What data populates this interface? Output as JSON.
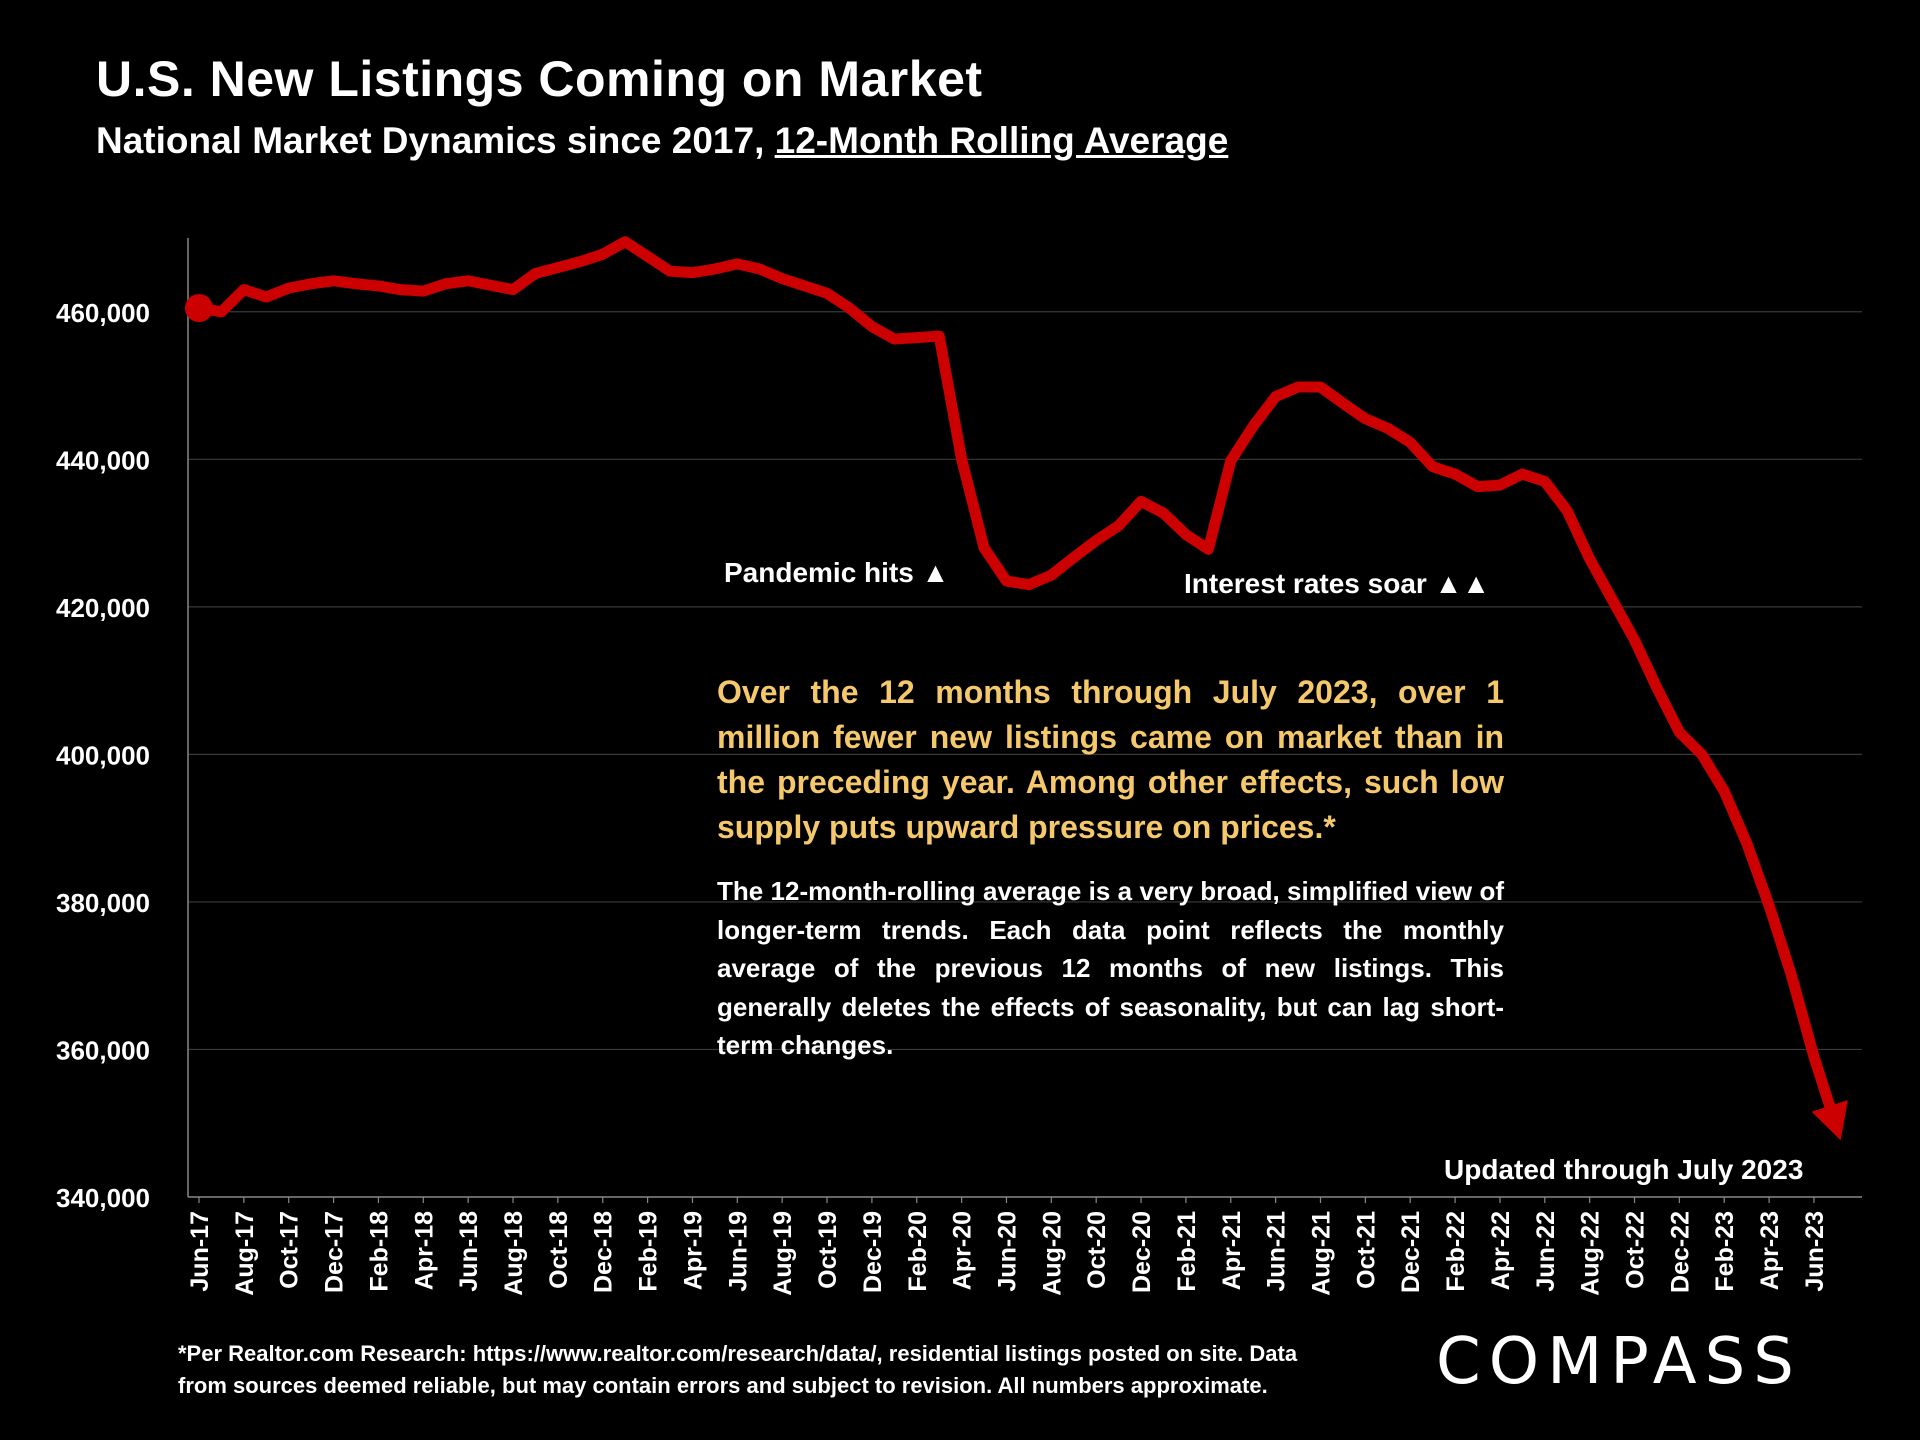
{
  "header": {
    "title": "U.S. New Listings Coming on Market",
    "subtitle_prefix": "National Market Dynamics since 2017, ",
    "subtitle_underlined": "12-Month Rolling Average"
  },
  "chart_data": {
    "type": "line",
    "title": "U.S. New Listings Coming on Market",
    "xlabel": "",
    "ylabel": "",
    "ylim": [
      340000,
      470000
    ],
    "yticks": [
      340000,
      360000,
      380000,
      400000,
      420000,
      440000,
      460000
    ],
    "ytick_labels": [
      "340,000",
      "360,000",
      "380,000",
      "400,000",
      "420,000",
      "440,000",
      "460,000"
    ],
    "grid": true,
    "series_color": "#cc0000",
    "x_tick_labels": [
      "Jun-17",
      "Aug-17",
      "Oct-17",
      "Dec-17",
      "Feb-18",
      "Apr-18",
      "Jun-18",
      "Aug-18",
      "Oct-18",
      "Dec-18",
      "Feb-19",
      "Apr-19",
      "Jun-19",
      "Aug-19",
      "Oct-19",
      "Dec-19",
      "Feb-20",
      "Apr-20",
      "Jun-20",
      "Aug-20",
      "Oct-20",
      "Dec-20",
      "Feb-21",
      "Apr-21",
      "Jun-21",
      "Aug-21",
      "Oct-21",
      "Dec-21",
      "Feb-22",
      "Apr-22",
      "Jun-22",
      "Aug-22",
      "Oct-22",
      "Dec-22",
      "Feb-23",
      "Apr-23",
      "Jun-23"
    ],
    "series": [
      {
        "name": "New Listings (12-Month Rolling Average)",
        "x": [
          "Jun-17",
          "Jul-17",
          "Aug-17",
          "Sep-17",
          "Oct-17",
          "Nov-17",
          "Dec-17",
          "Jan-18",
          "Feb-18",
          "Mar-18",
          "Apr-18",
          "May-18",
          "Jun-18",
          "Jul-18",
          "Aug-18",
          "Sep-18",
          "Oct-18",
          "Nov-18",
          "Dec-18",
          "Jan-19",
          "Feb-19",
          "Mar-19",
          "Apr-19",
          "May-19",
          "Jun-19",
          "Jul-19",
          "Aug-19",
          "Sep-19",
          "Oct-19",
          "Nov-19",
          "Dec-19",
          "Jan-20",
          "Feb-20",
          "Mar-20",
          "Apr-20",
          "May-20",
          "Jun-20",
          "Jul-20",
          "Aug-20",
          "Sep-20",
          "Oct-20",
          "Nov-20",
          "Dec-20",
          "Jan-21",
          "Feb-21",
          "Mar-21",
          "Apr-21",
          "May-21",
          "Jun-21",
          "Jul-21",
          "Aug-21",
          "Sep-21",
          "Oct-21",
          "Nov-21",
          "Dec-21",
          "Jan-22",
          "Feb-22",
          "Mar-22",
          "Apr-22",
          "May-22",
          "Jun-22",
          "Jul-22",
          "Aug-22",
          "Sep-22",
          "Oct-22",
          "Nov-22",
          "Dec-22",
          "Jan-23",
          "Feb-23",
          "Mar-23",
          "Apr-23",
          "May-23",
          "Jun-23",
          "Jul-23"
        ],
        "values": [
          460500,
          460000,
          463000,
          462000,
          463200,
          463800,
          464200,
          463800,
          463500,
          463000,
          462800,
          463800,
          464200,
          463600,
          463000,
          465200,
          466000,
          466800,
          467800,
          469500,
          467500,
          465500,
          465300,
          465800,
          466500,
          465800,
          464500,
          463500,
          462500,
          460500,
          458000,
          456300,
          456500,
          456700,
          440000,
          428000,
          423500,
          423000,
          424300,
          426700,
          429000,
          431000,
          434300,
          432700,
          429800,
          427800,
          439800,
          444500,
          448500,
          449800,
          449800,
          447600,
          445500,
          444200,
          442300,
          439000,
          438000,
          436300,
          436500,
          438000,
          437000,
          433000,
          426500,
          421000,
          415500,
          409000,
          403000,
          400000,
          395000,
          388000,
          379500,
          370000,
          359000,
          349500
        ]
      }
    ],
    "annotations": {
      "pandemic": "Pandemic hits ▲",
      "rates": "Interest rates soar ▲▲",
      "updated": "Updated through July 2023"
    }
  },
  "callout": {
    "headline": "Over the 12 months through July 2023, over 1 million fewer new listings came on market than in the preceding year. Among other effects, such low supply puts upward pressure on prices.*",
    "body": "The 12-month-rolling average is a very broad, simplified view of longer-term trends. Each data point reflects the monthly average of the previous 12 months of new listings. This generally deletes the effects of seasonality, but can lag short-term changes."
  },
  "footer": {
    "note_line1": "*Per Realtor.com Research:  https://www.realtor.com/research/data/, residential listings posted on site. Data",
    "note_line2": "from sources deemed reliable, but may contain errors and subject to revision. All numbers approximate.",
    "logo": "COMPASS"
  }
}
